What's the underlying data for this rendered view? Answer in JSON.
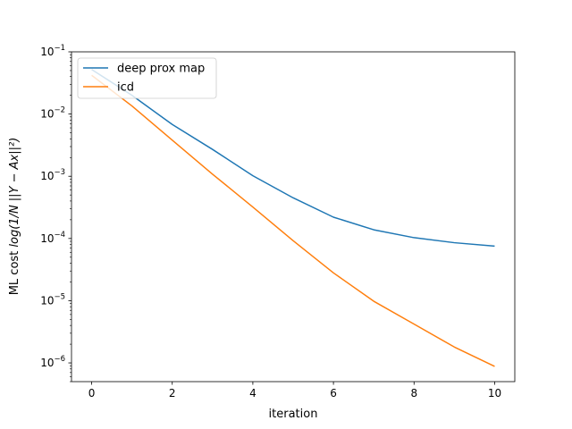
{
  "chart_data": {
    "type": "line",
    "title": "",
    "xlabel": "iteration",
    "ylabel": "ML cost",
    "ylabel_math": "log(1/N ||Y − Ax||²)",
    "yscale": "log",
    "xlim": [
      -0.5,
      10.5
    ],
    "ylim": [
      5e-07,
      0.1
    ],
    "x_ticks": [
      0,
      2,
      4,
      6,
      8,
      10
    ],
    "y_ticks": [
      {
        "value": 1e-06,
        "label": "10",
        "exp": "−6"
      },
      {
        "value": 1e-05,
        "label": "10",
        "exp": "−5"
      },
      {
        "value": 0.0001,
        "label": "10",
        "exp": "−4"
      },
      {
        "value": 0.001,
        "label": "10",
        "exp": "−3"
      },
      {
        "value": 0.01,
        "label": "10",
        "exp": "−2"
      },
      {
        "value": 0.1,
        "label": "10",
        "exp": "−1"
      }
    ],
    "grid": false,
    "legend_position": "top-left",
    "x": [
      0,
      1,
      2,
      3,
      4,
      5,
      6,
      7,
      8,
      9,
      10
    ],
    "series": [
      {
        "name": "deep prox map",
        "color": "#1f77b4",
        "values": [
          0.052,
          0.02,
          0.0068,
          0.0027,
          0.00102,
          0.00045,
          0.00022,
          0.000138,
          0.000103,
          8.55e-05,
          7.55e-05
        ]
      },
      {
        "name": "icd",
        "color": "#ff7f0e",
        "values": [
          0.042,
          0.0135,
          0.0038,
          0.00108,
          0.00032,
          9.2e-05,
          2.8e-05,
          9.8e-06,
          4.2e-06,
          1.8e-06,
          8.8e-07
        ]
      }
    ]
  }
}
